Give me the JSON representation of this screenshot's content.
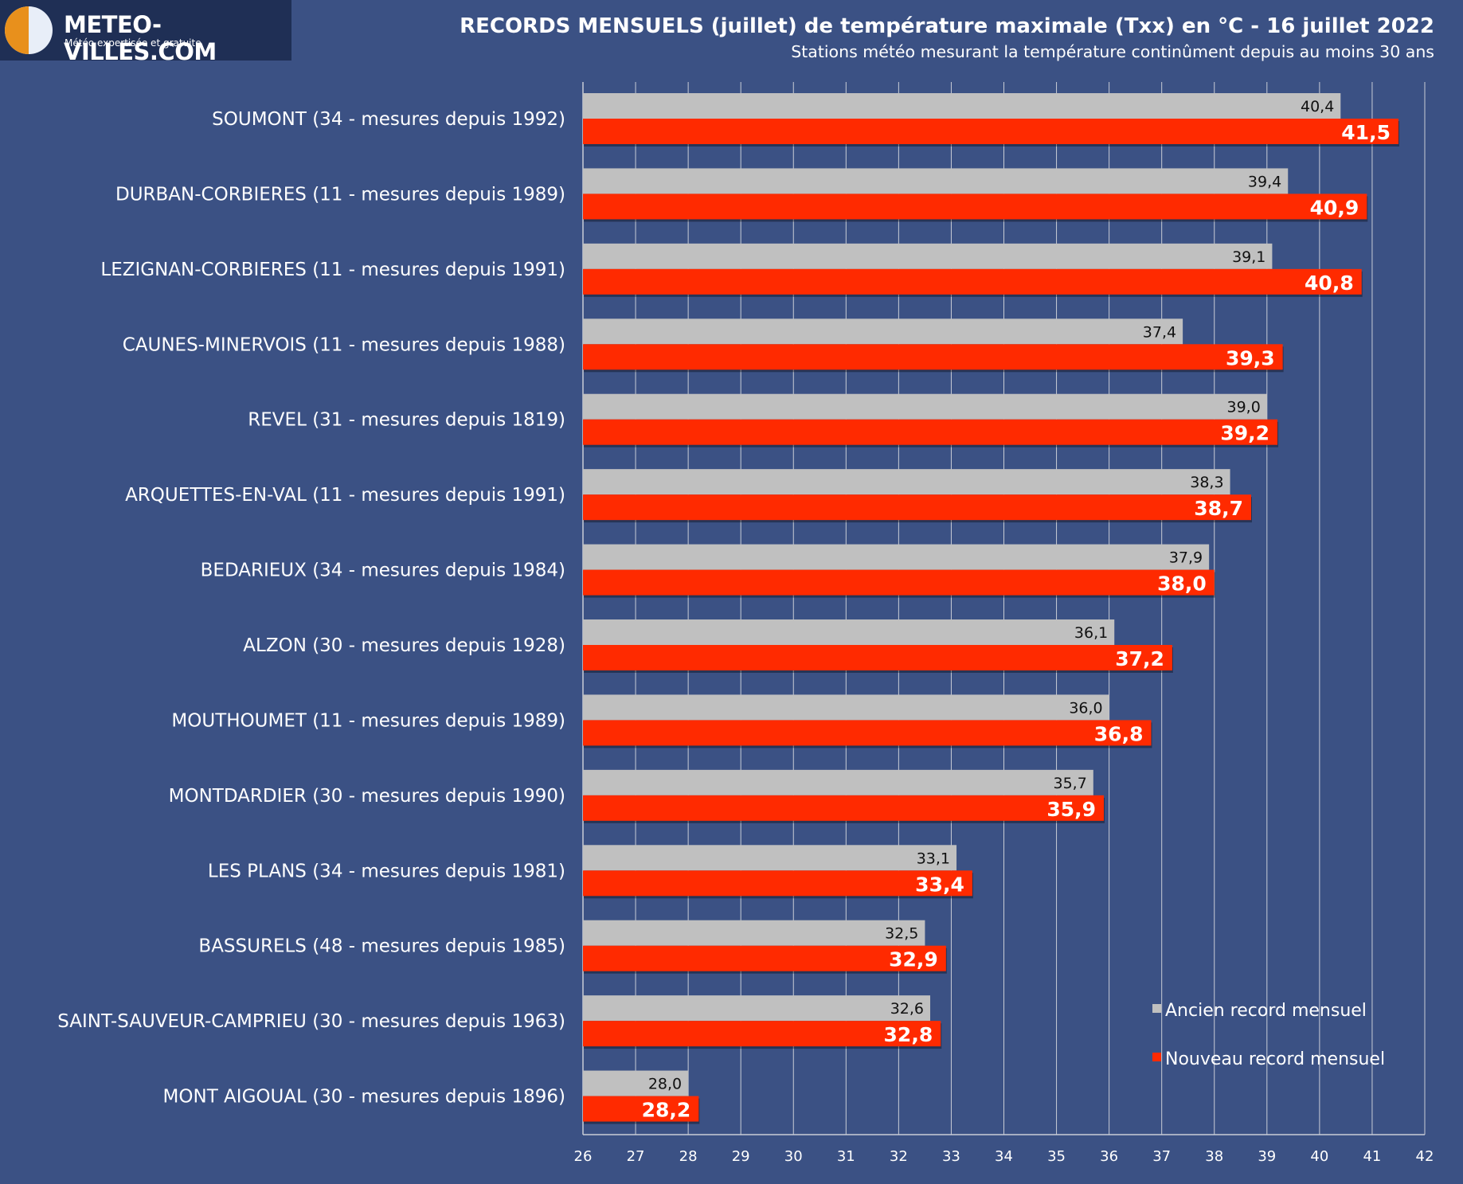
{
  "header": {
    "logo_title": "METEO-VILLES.COM",
    "logo_tagline": "Météo expertisée et gratuite",
    "title": "RECORDS MENSUELS (juillet) de température maximale (Txx) en °C - 16 juillet 2022",
    "subtitle": "Stations météo mesurant la température continûment depuis au moins 30 ans"
  },
  "colors": {
    "background": "#3b5184",
    "old_record": "#c0c0c0",
    "new_record": "#ff2a00",
    "grid": "#c9cdd6"
  },
  "chart_data": {
    "type": "bar",
    "orientation": "horizontal",
    "title": "RECORDS MENSUELS (juillet) de température maximale (Txx) en °C - 16 juillet 2022",
    "subtitle": "Stations météo mesurant la température continûment depuis au moins 30 ans",
    "xlim": [
      26,
      42
    ],
    "xticks": [
      26,
      27,
      28,
      29,
      30,
      31,
      32,
      33,
      34,
      35,
      36,
      37,
      38,
      39,
      40,
      41,
      42
    ],
    "grid": "vertical",
    "legend_position": "bottom-right",
    "categories": [
      "SOUMONT (34 - mesures depuis 1992)",
      "DURBAN-CORBIERES (11 - mesures depuis 1989)",
      "LEZIGNAN-CORBIERES (11 - mesures depuis 1991)",
      "CAUNES-MINERVOIS (11 - mesures depuis 1988)",
      "REVEL (31 - mesures depuis 1819)",
      "ARQUETTES-EN-VAL (11 - mesures depuis 1991)",
      "BEDARIEUX (34 - mesures depuis 1984)",
      "ALZON (30 - mesures depuis 1928)",
      "MOUTHOUMET (11 - mesures depuis 1989)",
      "MONTDARDIER (30 - mesures depuis 1990)",
      "LES PLANS (34 - mesures depuis 1981)",
      "BASSURELS (48 - mesures depuis 1985)",
      "SAINT-SAUVEUR-CAMPRIEU (30 - mesures depuis 1963)",
      "MONT AIGOUAL (30 - mesures depuis 1896)"
    ],
    "series": [
      {
        "name": "Ancien record mensuel",
        "values": [
          40.4,
          39.4,
          39.1,
          37.4,
          39.0,
          38.3,
          37.9,
          36.1,
          36.0,
          35.7,
          33.1,
          32.5,
          32.6,
          28.0
        ],
        "labels": [
          "40,4",
          "39,4",
          "39,1",
          "37,4",
          "39,0",
          "38,3",
          "37,9",
          "36,1",
          "36,0",
          "35,7",
          "33,1",
          "32,5",
          "32,6",
          "28,0"
        ]
      },
      {
        "name": "Nouveau record mensuel",
        "values": [
          41.5,
          40.9,
          40.8,
          39.3,
          39.2,
          38.7,
          38.0,
          37.2,
          36.8,
          35.9,
          33.4,
          32.9,
          32.8,
          28.2
        ],
        "labels": [
          "41,5",
          "40,9",
          "40,8",
          "39,3",
          "39,2",
          "38,7",
          "38,0",
          "37,2",
          "36,8",
          "35,9",
          "33,4",
          "32,9",
          "32,8",
          "28,2"
        ]
      }
    ]
  }
}
